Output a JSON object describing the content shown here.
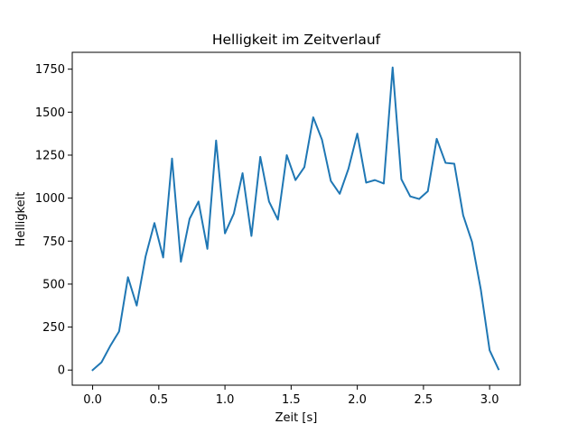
{
  "chart_data": {
    "type": "line",
    "title": "Helligkeit im Zeitverlauf",
    "xlabel": "Zeit [s]",
    "ylabel": "Helligkeit",
    "xlim": [
      -0.154,
      3.231
    ],
    "ylim": [
      -88,
      1848
    ],
    "grid": false,
    "line_color": "#1f77b4",
    "x_ticks": [
      {
        "value": 0.0,
        "label": "0.0"
      },
      {
        "value": 0.5,
        "label": "0.5"
      },
      {
        "value": 1.0,
        "label": "1.0"
      },
      {
        "value": 1.5,
        "label": "1.5"
      },
      {
        "value": 2.0,
        "label": "2.0"
      },
      {
        "value": 2.5,
        "label": "2.5"
      },
      {
        "value": 3.0,
        "label": "3.0"
      }
    ],
    "y_ticks": [
      {
        "value": 0,
        "label": "0"
      },
      {
        "value": 250,
        "label": "250"
      },
      {
        "value": 500,
        "label": "500"
      },
      {
        "value": 750,
        "label": "750"
      },
      {
        "value": 1000,
        "label": "1000"
      },
      {
        "value": 1250,
        "label": "1250"
      },
      {
        "value": 1500,
        "label": "1500"
      },
      {
        "value": 1750,
        "label": "1750"
      }
    ],
    "series": [
      {
        "x": [
          0.0,
          0.067,
          0.133,
          0.2,
          0.267,
          0.333,
          0.4,
          0.467,
          0.533,
          0.6,
          0.667,
          0.733,
          0.8,
          0.867,
          0.933,
          1.0,
          1.067,
          1.133,
          1.2,
          1.267,
          1.333,
          1.4,
          1.467,
          1.533,
          1.6,
          1.667,
          1.733,
          1.8,
          1.867,
          1.933,
          2.0,
          2.067,
          2.133,
          2.2,
          2.267,
          2.333,
          2.4,
          2.467,
          2.533,
          2.6,
          2.667,
          2.733,
          2.8,
          2.867,
          2.933,
          3.0,
          3.067
        ],
        "values": [
          0,
          45,
          140,
          225,
          540,
          375,
          660,
          855,
          655,
          1230,
          630,
          880,
          980,
          705,
          1335,
          795,
          910,
          1145,
          780,
          1240,
          980,
          875,
          1250,
          1105,
          1180,
          1470,
          1340,
          1100,
          1025,
          1170,
          1375,
          1090,
          1105,
          1085,
          1760,
          1110,
          1010,
          995,
          1040,
          1345,
          1205,
          1200,
          900,
          745,
          470,
          115,
          5
        ]
      }
    ]
  }
}
